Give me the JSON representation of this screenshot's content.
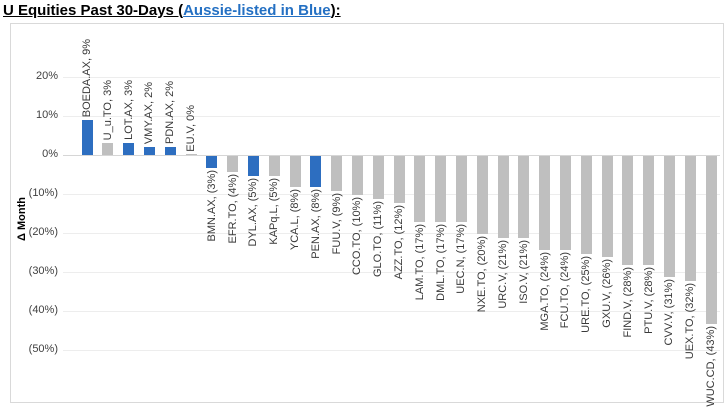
{
  "title": {
    "prefix": "U Equities Past 30-Days (",
    "highlight": "Aussie-listed in Blue",
    "suffix": "):"
  },
  "chart_data": {
    "type": "bar",
    "title": "U Equities Past 30-Days (Aussie-listed in Blue)",
    "xlabel": "",
    "ylabel": "Δ Month",
    "ylim": [
      -50,
      20
    ],
    "grid": true,
    "legend": "none",
    "value_unit": "percent",
    "yticks": {
      "values": [
        20,
        10,
        0,
        -10,
        -20,
        -30,
        -40,
        -50
      ],
      "labels": [
        "20%",
        "10%",
        "0%",
        "(10%)",
        "(20%)",
        "(30%)",
        "(40%)",
        "(50%)"
      ]
    },
    "colors": {
      "aussie_bar": "#2D6EC0",
      "other_bar": "#BFBFBF",
      "title_highlight": "#2470C3"
    },
    "bars": [
      {
        "ticker": "BOEDA.AX",
        "value": 9,
        "label": "BOEDA.AX, 9%",
        "aussie": true
      },
      {
        "ticker": "U_u.TO",
        "value": 3,
        "label": "U_u.TO, 3%",
        "aussie": false
      },
      {
        "ticker": "LOT.AX",
        "value": 3,
        "label": "LOT.AX, 3%",
        "aussie": true
      },
      {
        "ticker": "VMY.AX",
        "value": 2,
        "label": "VMY.AX, 2%",
        "aussie": true
      },
      {
        "ticker": "PDN.AX",
        "value": 2,
        "label": "PDN.AX, 2%",
        "aussie": true
      },
      {
        "ticker": "EU.V",
        "value": 0,
        "label": "EU.V, 0%",
        "aussie": false
      },
      {
        "ticker": "BMN.AX",
        "value": -3,
        "label": "BMN.AX, (3%)",
        "aussie": true
      },
      {
        "ticker": "EFR.TO",
        "value": -4,
        "label": "EFR.TO, (4%)",
        "aussie": false
      },
      {
        "ticker": "DYL.AX",
        "value": -5,
        "label": "DYL.AX, (5%)",
        "aussie": true
      },
      {
        "ticker": "KAPq.L",
        "value": -5,
        "label": "KAPq.L, (5%)",
        "aussie": false
      },
      {
        "ticker": "YCA.L",
        "value": -8,
        "label": "YCA.L, (8%)",
        "aussie": false
      },
      {
        "ticker": "PEN.AX",
        "value": -8,
        "label": "PEN.AX, (8%)",
        "aussie": true
      },
      {
        "ticker": "FUU.V",
        "value": -9,
        "label": "FUU.V, (9%)",
        "aussie": false
      },
      {
        "ticker": "CCO.TO",
        "value": -10,
        "label": "CCO.TO, (10%)",
        "aussie": false
      },
      {
        "ticker": "GLO.TO",
        "value": -11,
        "label": "GLO.TO, (11%)",
        "aussie": false
      },
      {
        "ticker": "AZZ.TO",
        "value": -12,
        "label": "AZZ.TO, (12%)",
        "aussie": false
      },
      {
        "ticker": "LAM.TO",
        "value": -17,
        "label": "LAM.TO, (17%)",
        "aussie": false
      },
      {
        "ticker": "DML.TO",
        "value": -17,
        "label": "DML.TO, (17%)",
        "aussie": false
      },
      {
        "ticker": "UEC.N",
        "value": -17,
        "label": "UEC.N, (17%)",
        "aussie": false
      },
      {
        "ticker": "NXE.TO",
        "value": -20,
        "label": "NXE.TO, (20%)",
        "aussie": false
      },
      {
        "ticker": "URC.V",
        "value": -21,
        "label": "URC.V, (21%)",
        "aussie": false
      },
      {
        "ticker": "ISO.V",
        "value": -21,
        "label": "ISO.V, (21%)",
        "aussie": false
      },
      {
        "ticker": "MGA.TO",
        "value": -24,
        "label": "MGA.TO, (24%)",
        "aussie": false
      },
      {
        "ticker": "FCU.TO",
        "value": -24,
        "label": "FCU.TO, (24%)",
        "aussie": false
      },
      {
        "ticker": "URE.TO",
        "value": -25,
        "label": "URE.TO, (25%)",
        "aussie": false
      },
      {
        "ticker": "GXU.V",
        "value": -26,
        "label": "GXU.V, (26%)",
        "aussie": false
      },
      {
        "ticker": "FIND.V",
        "value": -28,
        "label": "FIND.V, (28%)",
        "aussie": false
      },
      {
        "ticker": "PTU.V",
        "value": -28,
        "label": "PTU.V, (28%)",
        "aussie": false
      },
      {
        "ticker": "CVV.V",
        "value": -31,
        "label": "CVV.V, (31%)",
        "aussie": false
      },
      {
        "ticker": "UEX.TO",
        "value": -32,
        "label": "UEX.TO, (32%)",
        "aussie": false
      },
      {
        "ticker": "WUC.CD",
        "value": -43,
        "label": "WUC.CD, (43%)",
        "aussie": false
      }
    ]
  }
}
